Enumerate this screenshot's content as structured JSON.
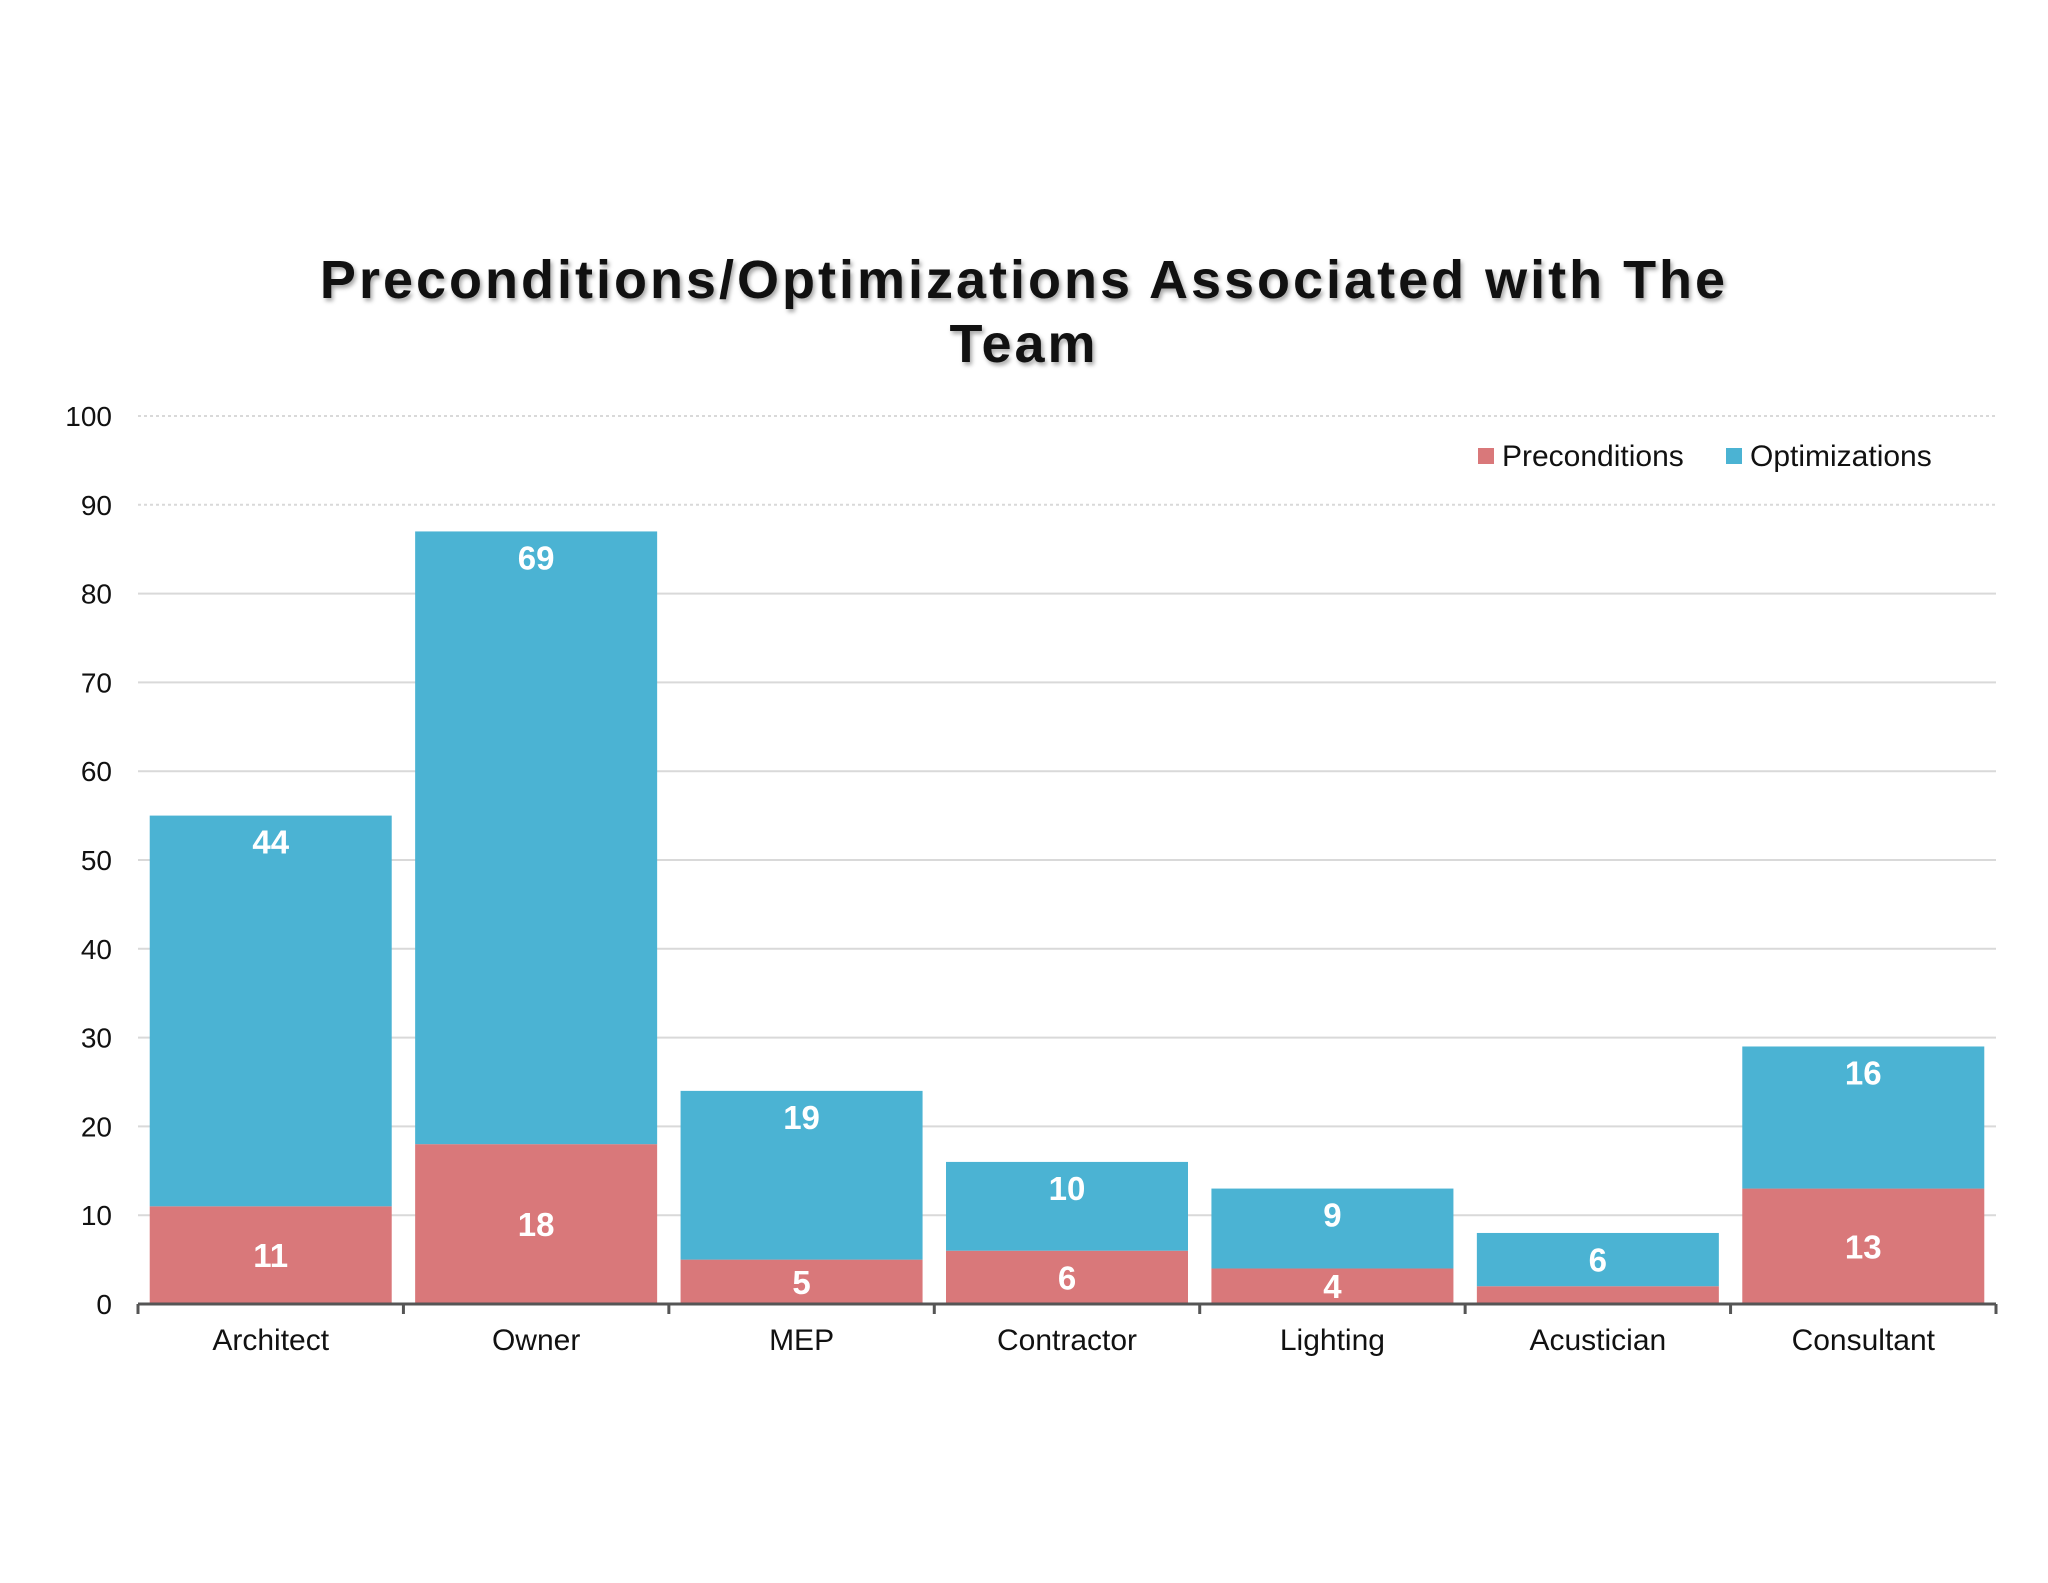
{
  "chart_data": {
    "type": "bar",
    "stacked": true,
    "title": "Preconditions/Optimizations Associated with The Team",
    "title_lines": [
      "Preconditions/Optimizations Associated with The",
      "Team"
    ],
    "categories": [
      "Architect",
      "Owner",
      "MEP",
      "Contractor",
      "Lighting",
      "Acustician",
      "Consultant"
    ],
    "series": [
      {
        "name": "Preconditions",
        "color": "#d9787a",
        "values": [
          11,
          18,
          5,
          6,
          4,
          2,
          13
        ],
        "labels": [
          "11",
          "18",
          "5",
          "6",
          "4",
          "",
          "13"
        ]
      },
      {
        "name": "Optimizations",
        "color": "#4bb3d3",
        "values": [
          44,
          69,
          19,
          10,
          9,
          6,
          16
        ],
        "labels": [
          "44",
          "69",
          "19",
          "10",
          "9",
          "6",
          "16"
        ]
      }
    ],
    "ylim": [
      0,
      100
    ],
    "yticks": [
      0,
      10,
      20,
      30,
      40,
      50,
      60,
      70,
      80,
      90,
      100
    ],
    "ytick_labels": [
      "0",
      "10",
      "20",
      "30",
      "40",
      "50",
      "60",
      "70",
      "80",
      "90",
      "100"
    ],
    "grid": true,
    "legend_position": "top-right",
    "xlabel": "",
    "ylabel": ""
  }
}
